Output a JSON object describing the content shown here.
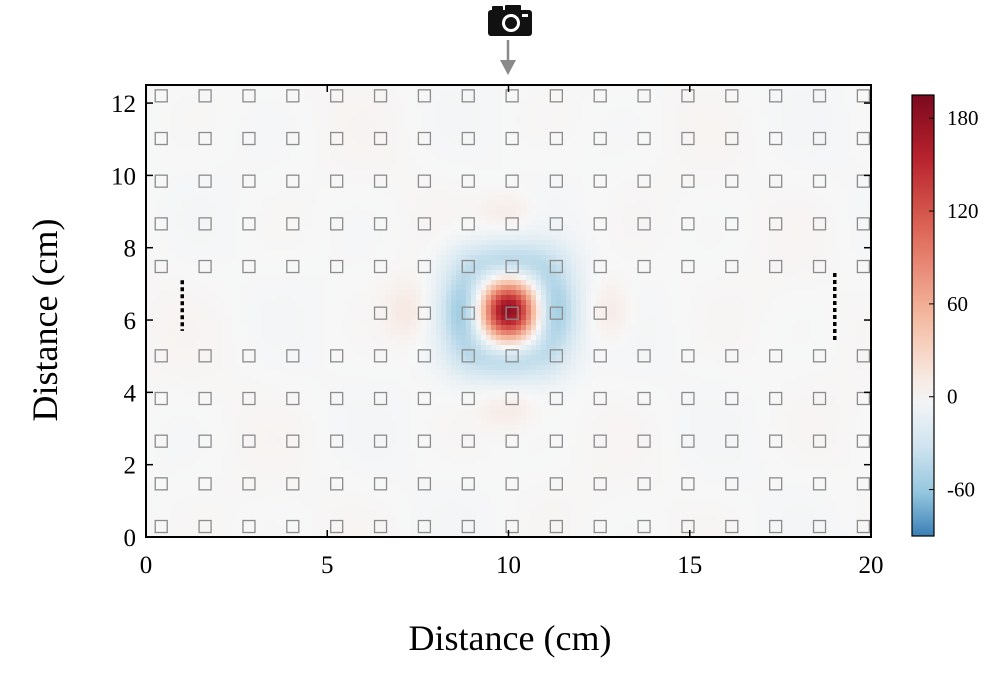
{
  "chart_data": {
    "type": "heatmap",
    "title": "",
    "xlabel": "Distance (cm)",
    "ylabel": "Distance (cm)",
    "xlim": [
      0,
      20
    ],
    "ylim": [
      0,
      12.5
    ],
    "xticks": [
      "0",
      "5",
      "10",
      "15",
      "20"
    ],
    "yticks": [
      "0",
      "2",
      "4",
      "6",
      "8",
      "10",
      "12"
    ],
    "colorbar": {
      "range": [
        -90,
        195
      ],
      "ticks": [
        "180",
        "120",
        "60",
        "0",
        "-60"
      ],
      "tick_values": [
        180,
        120,
        60,
        0,
        -60
      ],
      "colormap": "diverging blue-white-red",
      "colors": {
        "negative": "#3b7fb6",
        "zero": "#f7f7f7",
        "positive": "#7a0a1e"
      }
    },
    "field": {
      "peak": {
        "x": 10,
        "y": 6.25,
        "value": 190
      },
      "negative_lobes": [
        {
          "x": 8.8,
          "y": 6.25,
          "value": -65
        },
        {
          "x": 11.2,
          "y": 6.25,
          "value": -65
        },
        {
          "x": 10,
          "y": 7.6,
          "value": -45
        },
        {
          "x": 10,
          "y": 4.9,
          "value": -45
        }
      ],
      "positive_side_lobes": [
        {
          "x": 7.2,
          "y": 6.25,
          "value": 12
        },
        {
          "x": 12.8,
          "y": 6.25,
          "value": 12
        },
        {
          "x": 10,
          "y": 9.0,
          "value": 10
        },
        {
          "x": 10,
          "y": 3.5,
          "value": 10
        }
      ]
    },
    "markers": {
      "grid_x": [
        0.42,
        1.63,
        2.84,
        4.05,
        5.26,
        6.47,
        7.68,
        8.89,
        10.1,
        11.32,
        12.53,
        13.74,
        14.95,
        16.16,
        17.37,
        18.58,
        19.79
      ],
      "grid_y": [
        0.29,
        1.47,
        2.65,
        3.83,
        5.01,
        6.19,
        7.48,
        8.66,
        9.84,
        11.02,
        12.2
      ],
      "partial_row_y": 6.19,
      "partial_row_x_range": [
        6.4,
        13.5
      ],
      "dotted_lines": [
        {
          "x": 1.0,
          "y_from": 5.7,
          "y_to": 7.1
        },
        {
          "x": 19.0,
          "y_from": 5.4,
          "y_to": 7.3
        }
      ],
      "source_x": 10
    },
    "icons": {
      "source": "camera-icon",
      "arrow": "down-arrow-icon"
    },
    "grid": false
  }
}
